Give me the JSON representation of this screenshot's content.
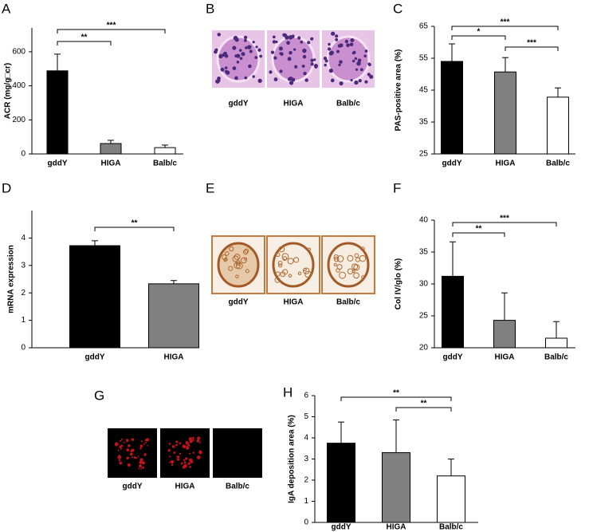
{
  "chart_data": [
    {
      "panel": "A",
      "type": "bar",
      "ylabel": "ACR (mg/g□cr)",
      "categories": [
        "gddY",
        "HIGA",
        "Balb/c"
      ],
      "values": [
        488,
        61,
        37
      ],
      "errors": [
        98,
        19,
        15
      ],
      "colors": [
        "#000000",
        "#808080",
        "#ffffff"
      ],
      "ylim": [
        0,
        740
      ],
      "yticks": [
        0,
        200,
        400,
        600
      ],
      "significance": [
        {
          "pair": [
            0,
            1
          ],
          "label": "**"
        },
        {
          "pair": [
            0,
            2
          ],
          "label": "***"
        }
      ]
    },
    {
      "panel": "C",
      "type": "bar",
      "ylabel": "PAS-positive area  (%)",
      "categories": [
        "gddY",
        "HIGA",
        "Balb/c"
      ],
      "values": [
        54,
        50.7,
        42.8
      ],
      "errors": [
        5.5,
        4.5,
        2.9
      ],
      "colors": [
        "#000000",
        "#808080",
        "#ffffff"
      ],
      "ylim": [
        25,
        65
      ],
      "yticks": [
        25,
        35,
        45,
        55,
        65
      ],
      "significance": [
        {
          "pair": [
            0,
            1
          ],
          "label": "*"
        },
        {
          "pair": [
            0,
            2
          ],
          "label": "***"
        },
        {
          "pair": [
            1,
            2
          ],
          "label": "***"
        }
      ]
    },
    {
      "panel": "D",
      "type": "bar",
      "ylabel": "mRNA expression",
      "categories": [
        "gddY",
        "HIGA"
      ],
      "values": [
        3.72,
        2.33
      ],
      "errors": [
        0.18,
        0.12
      ],
      "colors": [
        "#000000",
        "#808080"
      ],
      "ylim": [
        0,
        5
      ],
      "yticks": [
        0,
        1,
        2,
        3,
        4
      ],
      "significance": [
        {
          "pair": [
            0,
            1
          ],
          "label": "**"
        }
      ]
    },
    {
      "panel": "F",
      "type": "bar",
      "ylabel": "Col IV/glo (%)",
      "categories": [
        "gddY",
        "HIGA",
        "Balb/c"
      ],
      "values": [
        31.2,
        24.3,
        21.5
      ],
      "errors": [
        5.4,
        4.3,
        2.6
      ],
      "colors": [
        "#000000",
        "#808080",
        "#ffffff"
      ],
      "ylim": [
        20,
        40
      ],
      "yticks": [
        20,
        25,
        30,
        35,
        40
      ],
      "significance": [
        {
          "pair": [
            0,
            1
          ],
          "label": "**"
        },
        {
          "pair": [
            0,
            2
          ],
          "label": "***"
        }
      ]
    },
    {
      "panel": "H",
      "type": "bar",
      "ylabel": "IgA deposition area (%)",
      "categories": [
        "gddY",
        "HIGA",
        "Balb/c"
      ],
      "values": [
        3.75,
        3.3,
        2.2
      ],
      "errors": [
        1.0,
        1.55,
        0.8
      ],
      "colors": [
        "#000000",
        "#808080",
        "#ffffff"
      ],
      "ylim": [
        0,
        6
      ],
      "yticks": [
        0,
        1,
        2,
        3,
        4,
        5,
        6
      ],
      "significance": [
        {
          "pair": [
            0,
            2
          ],
          "label": "**"
        },
        {
          "pair": [
            1,
            2
          ],
          "label": "**"
        }
      ]
    }
  ],
  "images": [
    {
      "panel": "B",
      "labels": [
        "gddY",
        "HIGA",
        "Balb/c"
      ]
    },
    {
      "panel": "E",
      "labels": [
        "gddY",
        "HIGA",
        "Balb/c"
      ]
    },
    {
      "panel": "G",
      "labels": [
        "gddY",
        "HIGA",
        "Balb/c"
      ]
    }
  ]
}
